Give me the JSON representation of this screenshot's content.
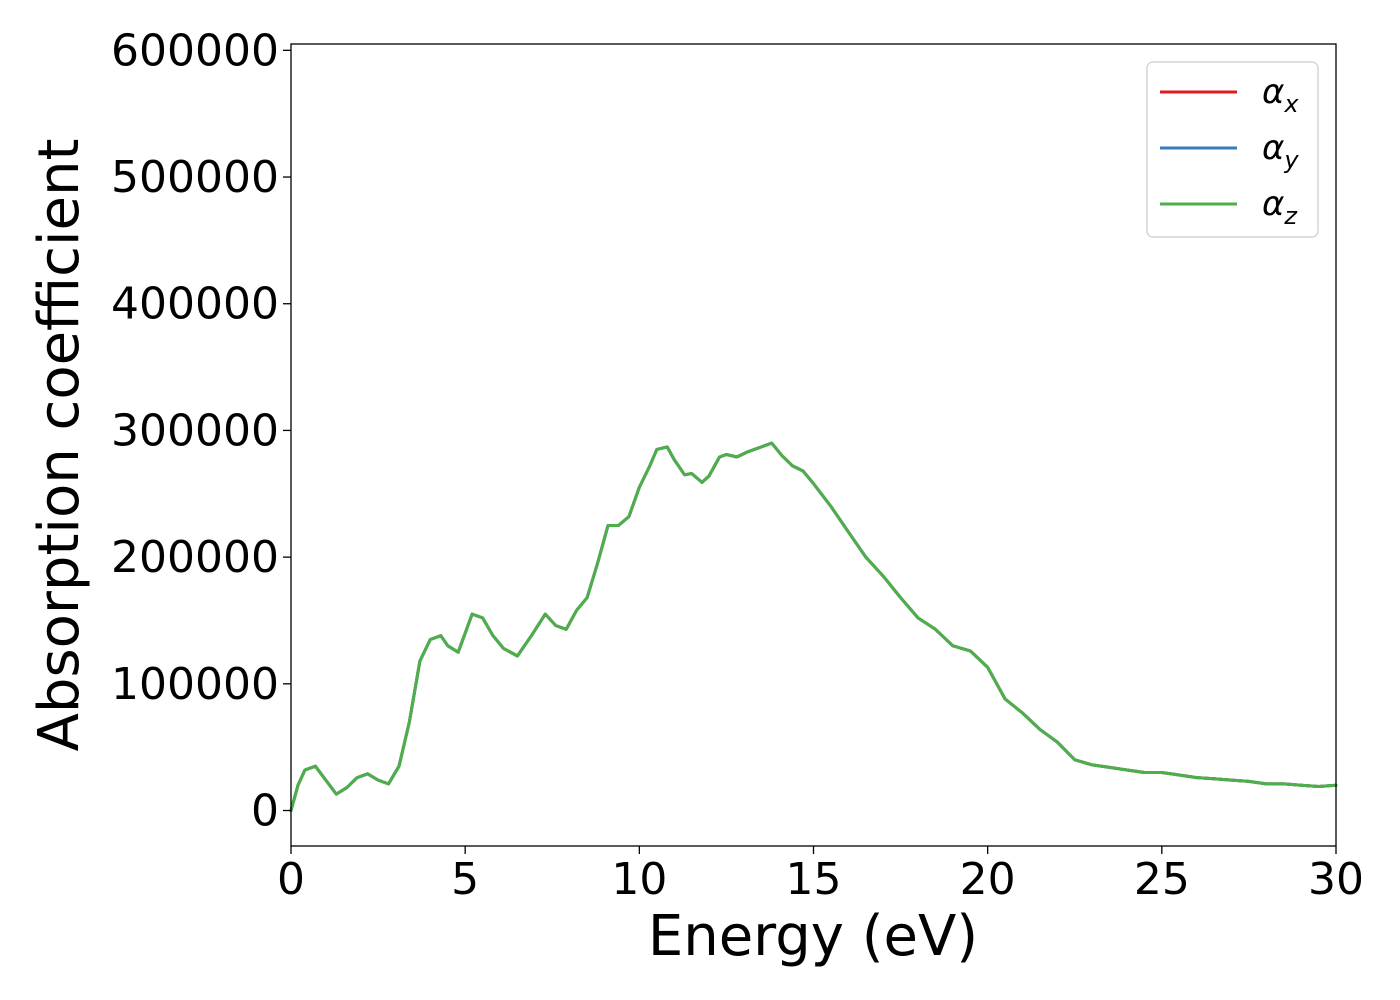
{
  "chart_data": {
    "type": "line",
    "xlabel": "Energy (eV)",
    "ylabel": "Absorption coefficient",
    "xlim": [
      0,
      30
    ],
    "ylim": [
      -28000,
      605000
    ],
    "x_ticks": [
      "0",
      "5",
      "10",
      "15",
      "20",
      "25",
      "30"
    ],
    "y_ticks": [
      "0",
      "100000",
      "200000",
      "300000",
      "400000",
      "500000",
      "600000"
    ],
    "grid": false,
    "legend_position": "top-right",
    "x": [
      0.0,
      0.2,
      0.4,
      0.7,
      1.0,
      1.3,
      1.6,
      1.9,
      2.2,
      2.5,
      2.8,
      3.1,
      3.4,
      3.7,
      4.0,
      4.3,
      4.5,
      4.8,
      5.0,
      5.2,
      5.5,
      5.8,
      6.1,
      6.5,
      6.9,
      7.3,
      7.6,
      7.9,
      8.2,
      8.5,
      8.8,
      9.1,
      9.4,
      9.7,
      10.0,
      10.3,
      10.5,
      10.8,
      11.0,
      11.3,
      11.5,
      11.8,
      12.0,
      12.3,
      12.5,
      12.8,
      13.1,
      13.4,
      13.8,
      14.1,
      14.4,
      14.7,
      15.0,
      15.5,
      16.0,
      16.5,
      17.0,
      17.5,
      18.0,
      18.5,
      19.0,
      19.5,
      20.0,
      20.5,
      21.0,
      21.5,
      22.0,
      22.5,
      23.0,
      23.5,
      24.0,
      24.5,
      25.0,
      25.5,
      26.0,
      26.5,
      27.0,
      27.5,
      28.0,
      28.5,
      29.0,
      29.5,
      30.0
    ],
    "series": [
      {
        "name": "α_x",
        "color": "#e41a1c",
        "values": [
          0,
          20000,
          32000,
          35000,
          24000,
          13000,
          18000,
          26000,
          29000,
          24000,
          21000,
          35000,
          70000,
          118000,
          135000,
          138000,
          130000,
          125000,
          140000,
          155000,
          152000,
          138000,
          128000,
          122000,
          138000,
          155000,
          146000,
          143000,
          158000,
          168000,
          195000,
          225000,
          225000,
          232000,
          255000,
          272000,
          285000,
          287000,
          277000,
          265000,
          266000,
          259000,
          264000,
          279000,
          281000,
          279000,
          283000,
          286000,
          290000,
          280000,
          272000,
          268000,
          258000,
          240000,
          220000,
          200000,
          185000,
          168000,
          152000,
          143000,
          130000,
          126000,
          113000,
          88000,
          77000,
          64000,
          54000,
          40000,
          36000,
          34000,
          32000,
          30000,
          30000,
          28000,
          26000,
          25000,
          24000,
          23000,
          21000,
          21000,
          20000,
          19000,
          20000
        ]
      },
      {
        "name": "α_y",
        "color": "#377eb8",
        "values": [
          0,
          20000,
          32000,
          35000,
          24000,
          13000,
          18000,
          26000,
          29000,
          24000,
          21000,
          35000,
          70000,
          118000,
          135000,
          138000,
          130000,
          125000,
          140000,
          155000,
          152000,
          138000,
          128000,
          122000,
          138000,
          155000,
          146000,
          143000,
          158000,
          168000,
          195000,
          225000,
          225000,
          232000,
          255000,
          272000,
          285000,
          287000,
          277000,
          265000,
          266000,
          259000,
          264000,
          279000,
          281000,
          279000,
          283000,
          286000,
          290000,
          280000,
          272000,
          268000,
          258000,
          240000,
          220000,
          200000,
          185000,
          168000,
          152000,
          143000,
          130000,
          126000,
          113000,
          88000,
          77000,
          64000,
          54000,
          40000,
          36000,
          34000,
          32000,
          30000,
          30000,
          28000,
          26000,
          25000,
          24000,
          23000,
          21000,
          21000,
          20000,
          19000,
          20000
        ]
      },
      {
        "name": "α_z",
        "color": "#4daf4a",
        "values": [
          0,
          20000,
          32000,
          35000,
          24000,
          13000,
          18000,
          26000,
          29000,
          24000,
          21000,
          35000,
          70000,
          118000,
          135000,
          138000,
          130000,
          125000,
          140000,
          155000,
          152000,
          138000,
          128000,
          122000,
          138000,
          155000,
          146000,
          143000,
          158000,
          168000,
          195000,
          225000,
          225000,
          232000,
          255000,
          272000,
          285000,
          287000,
          277000,
          265000,
          266000,
          259000,
          264000,
          279000,
          281000,
          279000,
          283000,
          286000,
          290000,
          280000,
          272000,
          268000,
          258000,
          240000,
          220000,
          200000,
          185000,
          168000,
          152000,
          143000,
          130000,
          126000,
          113000,
          88000,
          77000,
          64000,
          54000,
          40000,
          36000,
          34000,
          32000,
          30000,
          30000,
          28000,
          26000,
          25000,
          24000,
          23000,
          21000,
          21000,
          20000,
          19000,
          20000
        ]
      }
    ],
    "legend": [
      {
        "symbol": "α",
        "subscript": "x",
        "color": "#e41a1c"
      },
      {
        "symbol": "α",
        "subscript": "y",
        "color": "#377eb8"
      },
      {
        "symbol": "α",
        "subscript": "z",
        "color": "#4daf4a"
      }
    ]
  }
}
